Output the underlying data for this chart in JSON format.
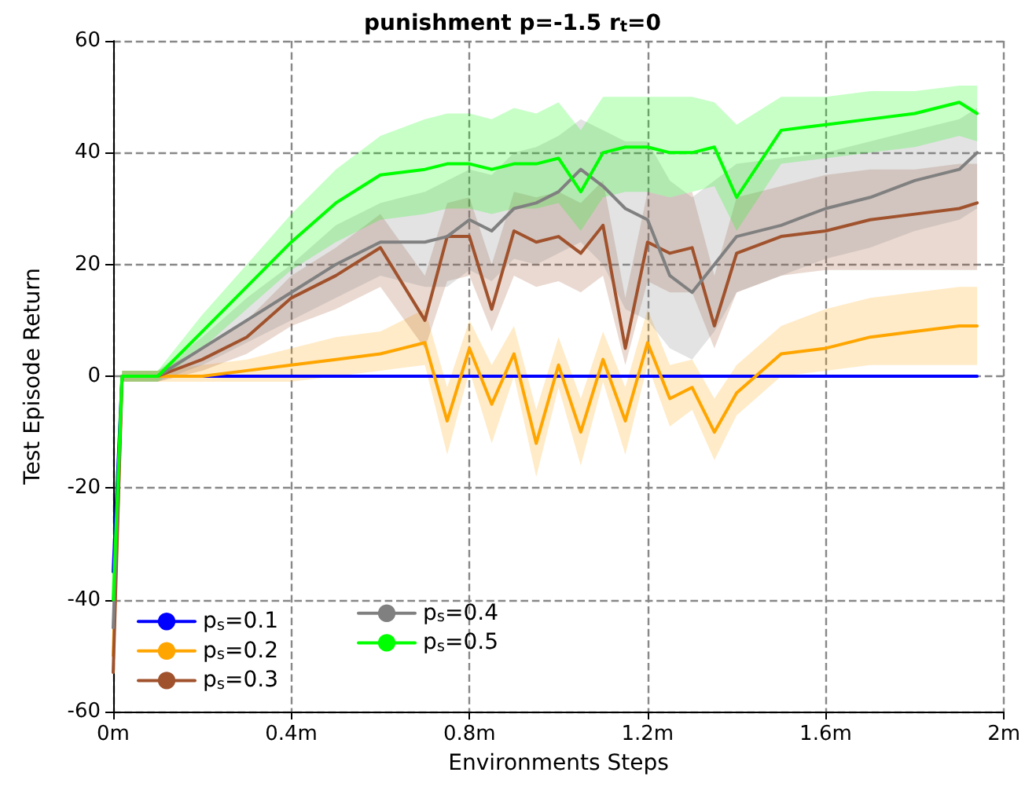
{
  "chart_data": {
    "type": "line",
    "title": "punishment p=-1.5 r$_{t}$=0",
    "xlabel": "Environments Steps",
    "ylabel": "Test Episode Return",
    "x": [
      0,
      0.02,
      0.1,
      0.2,
      0.3,
      0.4,
      0.5,
      0.6,
      0.7,
      0.75,
      0.8,
      0.85,
      0.9,
      0.95,
      1.0,
      1.05,
      1.1,
      1.15,
      1.2,
      1.25,
      1.3,
      1.35,
      1.4,
      1.5,
      1.6,
      1.7,
      1.8,
      1.9,
      1.94
    ],
    "series": [
      {
        "name": "p$_{s}$=0.1",
        "color": "#0000ff",
        "values": [
          -35,
          0,
          0,
          0,
          0,
          0,
          0,
          0,
          0,
          0,
          0,
          0,
          0,
          0,
          0,
          0,
          0,
          0,
          0,
          0,
          0,
          0,
          0,
          0,
          0,
          0,
          0,
          0,
          0
        ]
      },
      {
        "name": "p$_{s}$=0.2",
        "color": "#ffa500",
        "values": [
          -50,
          0,
          0,
          0,
          1,
          2,
          3,
          4,
          6,
          -8,
          5,
          -5,
          4,
          -12,
          2,
          -10,
          3,
          -8,
          6,
          -4,
          -2,
          -10,
          -3,
          4,
          5,
          7,
          8,
          9,
          9
        ],
        "lower": [
          -50,
          -1,
          -1,
          -1,
          -1,
          -1,
          0,
          1,
          2,
          -14,
          1,
          -12,
          0,
          -18,
          -2,
          -16,
          -1,
          -14,
          2,
          -9,
          -6,
          -15,
          -7,
          0,
          1,
          2,
          2,
          2,
          2
        ],
        "upper": [
          -50,
          1,
          1,
          2,
          3,
          5,
          7,
          8,
          12,
          -2,
          10,
          2,
          9,
          -6,
          7,
          -4,
          8,
          -2,
          12,
          2,
          3,
          -4,
          2,
          9,
          12,
          14,
          15,
          16,
          16
        ]
      },
      {
        "name": "p$_{s}$=0.3",
        "color": "#a0522d",
        "values": [
          -53,
          0,
          0,
          3,
          7,
          14,
          18,
          23,
          10,
          25,
          25,
          12,
          26,
          24,
          25,
          22,
          27,
          5,
          24,
          22,
          23,
          9,
          22,
          25,
          26,
          28,
          29,
          30,
          31
        ],
        "lower": [
          -53,
          -1,
          -1,
          1,
          4,
          9,
          12,
          16,
          5,
          17,
          18,
          8,
          18,
          16,
          17,
          15,
          18,
          2,
          17,
          15,
          15,
          5,
          15,
          18,
          19,
          19,
          19,
          19,
          19
        ],
        "upper": [
          -53,
          1,
          1,
          5,
          10,
          18,
          23,
          29,
          18,
          31,
          32,
          20,
          33,
          32,
          33,
          31,
          35,
          14,
          33,
          32,
          33,
          18,
          32,
          34,
          36,
          37,
          37,
          38,
          38
        ]
      },
      {
        "name": "p$_{s}$=0.4",
        "color": "#808080",
        "values": [
          -45,
          0,
          0,
          5,
          10,
          15,
          20,
          24,
          24,
          25,
          28,
          26,
          30,
          31,
          33,
          37,
          34,
          30,
          28,
          18,
          15,
          20,
          25,
          27,
          30,
          32,
          35,
          37,
          40
        ],
        "lower": [
          -45,
          -1,
          -1,
          2,
          6,
          10,
          14,
          18,
          16,
          16,
          19,
          17,
          21,
          20,
          22,
          24,
          20,
          12,
          10,
          5,
          3,
          8,
          15,
          18,
          21,
          23,
          26,
          28,
          30
        ],
        "upper": [
          -45,
          1,
          1,
          7,
          14,
          20,
          27,
          31,
          33,
          35,
          37,
          36,
          40,
          41,
          43,
          46,
          44,
          42,
          42,
          35,
          32,
          35,
          38,
          39,
          40,
          42,
          44,
          46,
          48
        ]
      },
      {
        "name": "p$_{s}$=0.5",
        "color": "#00ff00",
        "values": [
          -40,
          0,
          0,
          8,
          16,
          24,
          31,
          36,
          37,
          38,
          38,
          37,
          38,
          38,
          39,
          33,
          40,
          41,
          41,
          40,
          40,
          41,
          32,
          44,
          45,
          46,
          47,
          49,
          47
        ],
        "lower": [
          -40,
          -1,
          -1,
          5,
          12,
          19,
          24,
          28,
          29,
          30,
          30,
          29,
          30,
          30,
          31,
          26,
          32,
          33,
          33,
          32,
          33,
          34,
          26,
          38,
          39,
          40,
          41,
          43,
          42
        ],
        "upper": [
          -40,
          1,
          1,
          11,
          20,
          29,
          37,
          43,
          46,
          47,
          47,
          46,
          48,
          47,
          49,
          44,
          50,
          50,
          50,
          50,
          50,
          49,
          45,
          50,
          50,
          51,
          51,
          52,
          52
        ]
      }
    ],
    "xlim": [
      0,
      2
    ],
    "xticks": [
      {
        "value": 0,
        "label": "0m"
      },
      {
        "value": 0.4,
        "label": "0.4m"
      },
      {
        "value": 0.8,
        "label": "0.8m"
      },
      {
        "value": 1.2,
        "label": "1.2m"
      },
      {
        "value": 1.6,
        "label": "1.6m"
      },
      {
        "value": 2,
        "label": "2m"
      }
    ],
    "ylim": [
      -60,
      60
    ],
    "yticks": [
      -60,
      -40,
      -20,
      0,
      20,
      40,
      60
    ],
    "grid": true,
    "legend": "bottom left",
    "line_style": "solid",
    "marker": "none"
  }
}
